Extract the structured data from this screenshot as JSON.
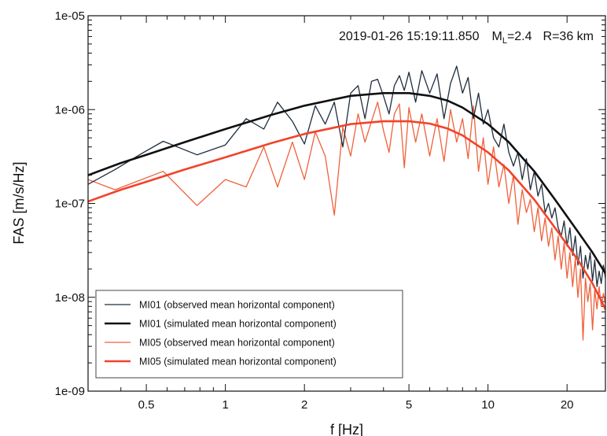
{
  "chart_data": {
    "type": "line",
    "xlabel": "f [Hz]",
    "ylabel": "FAS [m/s/Hz]",
    "x_scale": "log",
    "y_scale": "log",
    "xlim": [
      0.3,
      28
    ],
    "ylim": [
      1e-09,
      1e-05
    ],
    "x_ticks": [
      {
        "value": 0.5,
        "label": "0.5"
      },
      {
        "value": 1,
        "label": "1"
      },
      {
        "value": 2,
        "label": "2"
      },
      {
        "value": 5,
        "label": "5"
      },
      {
        "value": 10,
        "label": "10"
      },
      {
        "value": 20,
        "label": "20"
      }
    ],
    "y_ticks": [
      {
        "value": 1e-09,
        "label": "1e-09"
      },
      {
        "value": 1e-08,
        "label": "1e-08"
      },
      {
        "value": 1e-07,
        "label": "1e-07"
      },
      {
        "value": 1e-06,
        "label": "1e-06"
      },
      {
        "value": 1e-05,
        "label": "1e-05"
      }
    ],
    "annotation": {
      "event": "2019-01-26 15:19:11.850",
      "magnitude_prefix": "M",
      "magnitude_sub": "L",
      "magnitude_value": "=2.4",
      "distance": "R=36 km"
    },
    "legend": {
      "placement": "bottom-left"
    },
    "grid": false,
    "series": [
      {
        "name": "MI01 (observed mean horizontal component)",
        "color": "#1f2d3d",
        "width": 1.3,
        "x": [
          0.3,
          0.38,
          0.48,
          0.58,
          0.78,
          1.0,
          1.2,
          1.4,
          1.58,
          1.8,
          2.0,
          2.2,
          2.4,
          2.6,
          2.8,
          3.0,
          3.2,
          3.4,
          3.6,
          3.8,
          4.0,
          4.2,
          4.4,
          4.6,
          4.8,
          5.0,
          5.3,
          5.6,
          6.0,
          6.4,
          6.8,
          7.2,
          7.6,
          8.0,
          8.4,
          8.8,
          9.2,
          9.6,
          10.0,
          10.5,
          11.0,
          11.5,
          12.0,
          12.5,
          13.0,
          13.5,
          14.0,
          14.5,
          15.0,
          15.5,
          16.0,
          16.5,
          17.0,
          17.5,
          18.0,
          18.5,
          19.0,
          19.5,
          20.0,
          20.5,
          21.0,
          21.5,
          22.0,
          22.5,
          23.0,
          23.5,
          24.0,
          24.5,
          25.0,
          25.5,
          26.0,
          26.5,
          27.0,
          27.5,
          28.0
        ],
        "y": [
          1.6e-07,
          2.3e-07,
          3.4e-07,
          4.6e-07,
          3.3e-07,
          4.2e-07,
          8e-07,
          6.2e-07,
          1.2e-06,
          7.5e-07,
          4.3e-07,
          1.1e-06,
          7e-07,
          1.2e-06,
          4e-07,
          1.5e-06,
          1.8e-06,
          8e-07,
          2e-06,
          2.1e-06,
          1.4e-06,
          9e-07,
          1.8e-06,
          2.3e-06,
          1.6e-06,
          2.5e-06,
          1.2e-06,
          2.6e-06,
          1.5e-06,
          2.4e-06,
          8e-07,
          1.9e-06,
          2.9e-06,
          1.5e-06,
          2.2e-06,
          8e-07,
          1.5e-06,
          7e-07,
          1e-06,
          5e-07,
          4e-07,
          7e-07,
          3.5e-07,
          2.5e-07,
          3.5e-07,
          1.8e-07,
          3e-07,
          1.4e-07,
          2.2e-07,
          1.2e-07,
          1.6e-07,
          8e-08,
          1e-07,
          7e-08,
          9e-08,
          5.5e-08,
          4.5e-08,
          6.5e-08,
          3.5e-08,
          5.5e-08,
          2.8e-08,
          4.5e-08,
          2.2e-08,
          3.5e-08,
          1.6e-08,
          2.8e-08,
          2e-08,
          3e-08,
          1.5e-08,
          2.5e-08,
          1.3e-08,
          1.9e-08,
          1.4e-08,
          2.2e-08,
          1.6e-08
        ]
      },
      {
        "name": "MI01 (simulated mean horizontal component)",
        "color": "#111111",
        "width": 2.6,
        "x": [
          0.3,
          0.4,
          0.5,
          0.7,
          1.0,
          1.5,
          2.0,
          3.0,
          4.0,
          5.0,
          6.0,
          7.0,
          8.0,
          10.0,
          12.0,
          15.0,
          18.0,
          22.0,
          25.0,
          28.0
        ],
        "y": [
          2e-07,
          2.7e-07,
          3.3e-07,
          4.5e-07,
          6.2e-07,
          8.8e-07,
          1.1e-06,
          1.4e-06,
          1.5e-06,
          1.5e-06,
          1.4e-06,
          1.25e-06,
          1.05e-06,
          7e-07,
          4.5e-07,
          2.2e-07,
          1.1e-07,
          5e-08,
          3e-08,
          1.8e-08
        ]
      },
      {
        "name": "MI05 (observed mean horizontal component)",
        "color": "#f0603a",
        "width": 1.3,
        "x": [
          0.3,
          0.38,
          0.58,
          0.78,
          1.0,
          1.2,
          1.4,
          1.58,
          1.8,
          2.0,
          2.2,
          2.4,
          2.6,
          2.8,
          3.0,
          3.2,
          3.4,
          3.6,
          3.8,
          4.0,
          4.2,
          4.4,
          4.6,
          4.8,
          5.0,
          5.3,
          5.6,
          6.0,
          6.4,
          6.8,
          7.2,
          7.6,
          8.0,
          8.4,
          8.8,
          9.2,
          9.6,
          10.0,
          10.5,
          11.0,
          11.5,
          12.0,
          12.5,
          13.0,
          13.5,
          14.0,
          14.5,
          15.0,
          15.5,
          16.0,
          16.5,
          17.0,
          17.5,
          18.0,
          18.5,
          19.0,
          19.5,
          20.0,
          20.5,
          21.0,
          21.5,
          22.0,
          22.5,
          23.0,
          23.5,
          24.0,
          24.5,
          25.0,
          25.5,
          26.0,
          26.5,
          27.0,
          27.5,
          28.0
        ],
        "y": [
          1.8e-07,
          1.4e-07,
          2.2e-07,
          9.5e-08,
          1.8e-07,
          1.5e-07,
          4e-07,
          1.5e-07,
          4.5e-07,
          1.8e-07,
          5.8e-07,
          3.2e-07,
          7.5e-08,
          6.5e-07,
          3.2e-07,
          9e-07,
          4.5e-07,
          7.5e-07,
          1.2e-06,
          6e-07,
          3.5e-07,
          9e-07,
          1.15e-06,
          2.4e-07,
          1.05e-06,
          4.5e-07,
          9e-07,
          3.2e-07,
          8e-07,
          2.8e-07,
          1e-06,
          4.5e-07,
          8e-07,
          3e-07,
          1.1e-06,
          2.2e-07,
          5e-07,
          1.6e-07,
          4e-07,
          1.5e-07,
          2.6e-07,
          1e-07,
          2e-07,
          6e-08,
          1.4e-07,
          8e-08,
          1.1e-07,
          5e-08,
          9e-08,
          4e-08,
          7e-08,
          3.5e-08,
          5.5e-08,
          2.5e-08,
          4.5e-08,
          2e-08,
          3.8e-08,
          1.6e-08,
          3e-08,
          1.3e-08,
          2.6e-08,
          1e-08,
          2e-08,
          3.5e-09,
          1.6e-08,
          9e-09,
          1.4e-08,
          4.5e-09,
          1.2e-08,
          7.5e-09,
          1.3e-08,
          8e-09,
          1.1e-08,
          8.5e-09
        ]
      },
      {
        "name": "MI05 (simulated mean horizontal component)",
        "color": "#f0442a",
        "width": 2.6,
        "x": [
          0.3,
          0.4,
          0.5,
          0.7,
          1.0,
          1.5,
          2.0,
          3.0,
          4.0,
          5.0,
          6.0,
          7.0,
          8.0,
          10.0,
          12.0,
          15.0,
          18.0,
          22.0,
          25.0,
          28.0
        ],
        "y": [
          1.05e-07,
          1.4e-07,
          1.7e-07,
          2.3e-07,
          3.1e-07,
          4.4e-07,
          5.5e-07,
          7e-07,
          7.5e-07,
          7.5e-07,
          7.1e-07,
          6.3e-07,
          5.3e-07,
          3.5e-07,
          2.25e-07,
          1.1e-07,
          5.5e-08,
          2.5e-08,
          1.4e-08,
          7.5e-09
        ]
      }
    ]
  }
}
